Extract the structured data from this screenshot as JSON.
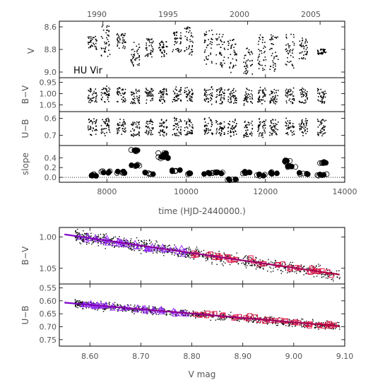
{
  "figure": {
    "star_name": "HU Vir",
    "top_axis_year_ticks": [
      "1990",
      "1995",
      "2000",
      "2005"
    ],
    "time_xlabel": "time (HJD-2440000.)",
    "time_ticks": [
      "8000",
      "10000",
      "12000",
      "14000"
    ],
    "vmag_xlabel": "V mag",
    "vmag_ticks": [
      "8.60",
      "8.70",
      "8.80",
      "8.90",
      "9.00",
      "9.10"
    ]
  },
  "chart_data": [
    {
      "type": "scatter",
      "panel": "V vs time",
      "ylabel": "V",
      "y_inverted": true,
      "ylim": [
        9.05,
        8.55
      ],
      "xlim": [
        6800,
        14000
      ],
      "yticks": [
        "8.6",
        "8.8",
        "9.0"
      ],
      "seasons": [
        {
          "t": 7620,
          "ymin": 8.68,
          "ymax": 8.8
        },
        {
          "t": 7950,
          "ymin": 8.58,
          "ymax": 8.86
        },
        {
          "t": 8350,
          "ymin": 8.65,
          "ymax": 8.79
        },
        {
          "t": 8700,
          "ymin": 8.73,
          "ymax": 8.95
        },
        {
          "t": 9050,
          "ymin": 8.7,
          "ymax": 8.87
        },
        {
          "t": 9400,
          "ymin": 8.72,
          "ymax": 8.86
        },
        {
          "t": 9750,
          "ymin": 8.64,
          "ymax": 8.82
        },
        {
          "t": 10050,
          "ymin": 8.59,
          "ymax": 8.85
        },
        {
          "t": 10550,
          "ymin": 8.62,
          "ymax": 8.93
        },
        {
          "t": 10850,
          "ymin": 8.66,
          "ymax": 8.95
        },
        {
          "t": 11150,
          "ymin": 8.7,
          "ymax": 9.0
        },
        {
          "t": 11550,
          "ymin": 8.78,
          "ymax": 9.02
        },
        {
          "t": 11900,
          "ymin": 8.66,
          "ymax": 8.98
        },
        {
          "t": 12200,
          "ymin": 8.66,
          "ymax": 8.99
        },
        {
          "t": 12600,
          "ymin": 8.66,
          "ymax": 8.96
        },
        {
          "t": 12950,
          "ymin": 8.69,
          "ymax": 8.88
        },
        {
          "t": 13400,
          "ymin": 8.79,
          "ymax": 8.84
        }
      ]
    },
    {
      "type": "scatter",
      "panel": "B-V vs time",
      "ylabel": "B−V",
      "y_inverted": true,
      "ylim": [
        1.08,
        0.93
      ],
      "yticks": [
        "0.95",
        "1.00",
        "1.05"
      ],
      "band": [
        0.97,
        1.05
      ]
    },
    {
      "type": "scatter",
      "panel": "U-B vs time",
      "ylabel": "U−B",
      "y_inverted": true,
      "ylim": [
        0.76,
        0.56
      ],
      "yticks": [
        "0.6",
        "0.7"
      ],
      "band": [
        0.59,
        0.71
      ]
    },
    {
      "type": "scatter",
      "panel": "slope vs time",
      "ylabel": "slope",
      "ylim": [
        -0.1,
        0.65
      ],
      "yticks": [
        "0.0",
        "0.2",
        "0.4"
      ],
      "reference_line": 0.0,
      "points": [
        {
          "t": 7620,
          "s": 0.05
        },
        {
          "t": 7950,
          "s": 0.11
        },
        {
          "t": 8350,
          "s": 0.1
        },
        {
          "t": 8700,
          "s": 0.55
        },
        {
          "t": 8720,
          "s": 0.25
        },
        {
          "t": 9050,
          "s": 0.08
        },
        {
          "t": 9400,
          "s": 0.48
        },
        {
          "t": 9420,
          "s": 0.4
        },
        {
          "t": 9750,
          "s": 0.13
        },
        {
          "t": 10050,
          "s": 0.07
        },
        {
          "t": 10550,
          "s": 0.08
        },
        {
          "t": 10850,
          "s": 0.09
        },
        {
          "t": 11150,
          "s": -0.05
        },
        {
          "t": 11550,
          "s": 0.1
        },
        {
          "t": 11900,
          "s": 0.05
        },
        {
          "t": 12200,
          "s": 0.09
        },
        {
          "t": 12600,
          "s": 0.33
        },
        {
          "t": 12650,
          "s": 0.22
        },
        {
          "t": 12950,
          "s": 0.08
        },
        {
          "t": 13400,
          "s": 0.31
        },
        {
          "t": 13420,
          "s": 0.05
        }
      ]
    },
    {
      "type": "scatter",
      "panel": "B-V vs V mag",
      "ylabel": "B−V",
      "y_inverted": true,
      "xlim": [
        8.54,
        9.1
      ],
      "ylim": [
        1.075,
        0.985
      ],
      "yticks": [
        "1.00",
        "1.05"
      ],
      "fit_line": {
        "x": [
          8.55,
          9.09
        ],
        "y": [
          0.996,
          1.06
        ]
      },
      "triangle_x_range": [
        8.58,
        8.8
      ],
      "square_x_range": [
        8.8,
        9.08
      ]
    },
    {
      "type": "scatter",
      "panel": "U-B vs V mag",
      "ylabel": "U−B",
      "y_inverted": true,
      "xlim": [
        8.54,
        9.1
      ],
      "ylim": [
        0.775,
        0.535
      ],
      "yticks": [
        "0.55",
        "0.60",
        "0.65",
        "0.70",
        "0.75"
      ],
      "fit_line": {
        "x": [
          8.55,
          9.09
        ],
        "y": [
          0.607,
          0.698
        ]
      },
      "triangle_x_range": [
        8.58,
        8.8
      ],
      "square_x_range": [
        8.8,
        9.08
      ]
    }
  ],
  "colors": {
    "dots": "#000000",
    "triangles": "#9b30ff",
    "squares": "#e0184a",
    "fit_line_start": "#7a00c8",
    "fit_line_end": "#b00040",
    "axis": "#000000",
    "label": "#555555"
  }
}
